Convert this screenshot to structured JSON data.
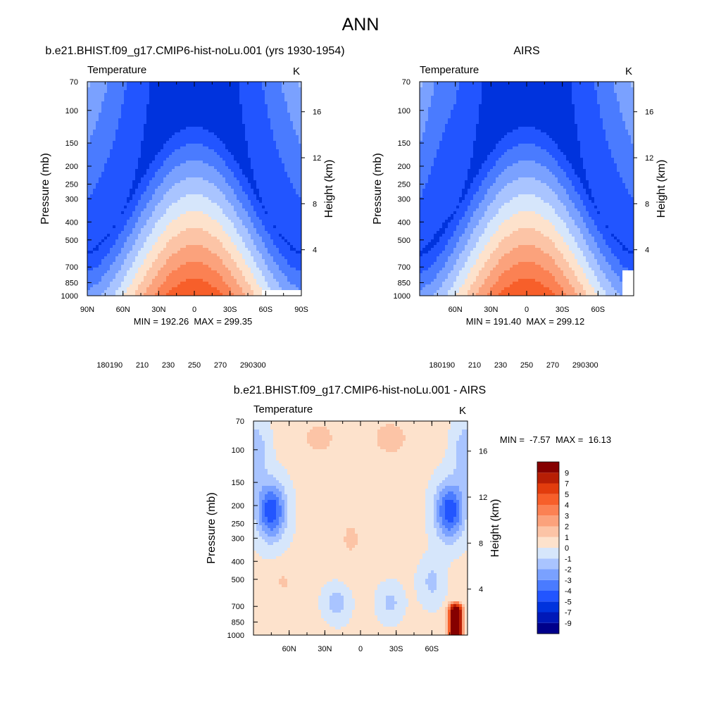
{
  "figure": {
    "main_title": "ANN"
  },
  "chart_data": [
    {
      "type": "heatmap",
      "title": "b.e21.BHIST.f09_g17.CMIP6-hist-noLu.001 (yrs 1930-1954)",
      "left_string": "Temperature",
      "right_string": "K",
      "xlabel": "",
      "ylabel": "Pressure (mb)",
      "ylabel_right": "Height (km)",
      "x_ticks": [
        "90N",
        "60N",
        "30N",
        "0",
        "30S",
        "60S",
        "90S"
      ],
      "x_tick_values": [
        90,
        60,
        30,
        0,
        -30,
        -60,
        -90
      ],
      "xlim": [
        90,
        -90
      ],
      "y_ticks": [
        "70",
        "100",
        "150",
        "200",
        "250",
        "300",
        "400",
        "500",
        "700",
        "850",
        "1000"
      ],
      "y_tick_values": [
        70,
        100,
        150,
        200,
        250,
        300,
        400,
        500,
        700,
        850,
        1000
      ],
      "ylim": [
        1000,
        70
      ],
      "y_right_ticks": [
        "16",
        "12",
        "8",
        "4"
      ],
      "y_right_tick_values": [
        16,
        12,
        8,
        4
      ],
      "y_scale": "log",
      "stats_text": "MIN = 192.26  MAX = 299.35",
      "min": 192.26,
      "max": 299.35,
      "model": "model",
      "colorbar": {
        "orientation": "horizontal",
        "levels": [
          180,
          190,
          200,
          210,
          220,
          230,
          240,
          250,
          260,
          270,
          280,
          290,
          300
        ],
        "labels": [
          "180",
          "190",
          "210",
          "230",
          "250",
          "270",
          "290",
          "300"
        ],
        "colors": [
          "#00008b",
          "#0019b8",
          "#0033dd",
          "#2255ff",
          "#4a7bff",
          "#7aa1ff",
          "#a9c4ff",
          "#d6e6fb",
          "#fde2cc",
          "#fcc4a6",
          "#fba27c",
          "#fb8153",
          "#f75f2a",
          "#e23c0d",
          "#b71e05",
          "#850000"
        ]
      }
    },
    {
      "type": "heatmap",
      "title": "AIRS",
      "left_string": "Temperature",
      "right_string": "K",
      "xlabel": "",
      "ylabel": "Pressure (mb)",
      "ylabel_right": "Height (km)",
      "x_ticks": [
        "60N",
        "30N",
        "0",
        "30S",
        "60S"
      ],
      "x_tick_values": [
        60,
        30,
        0,
        -30,
        -60
      ],
      "xlim": [
        90,
        -90
      ],
      "y_ticks": [
        "70",
        "100",
        "150",
        "200",
        "250",
        "300",
        "400",
        "500",
        "700",
        "850",
        "1000"
      ],
      "y_tick_values": [
        70,
        100,
        150,
        200,
        250,
        300,
        400,
        500,
        700,
        850,
        1000
      ],
      "ylim": [
        1000,
        70
      ],
      "y_right_ticks": [
        "16",
        "12",
        "8",
        "4"
      ],
      "y_right_tick_values": [
        16,
        12,
        8,
        4
      ],
      "y_scale": "log",
      "stats_text": "MIN = 191.40  MAX = 299.12",
      "min": 191.4,
      "max": 299.12,
      "model": "obs",
      "colorbar": {
        "orientation": "horizontal",
        "levels": [
          180,
          190,
          200,
          210,
          220,
          230,
          240,
          250,
          260,
          270,
          280,
          290,
          300
        ],
        "labels": [
          "180",
          "190",
          "210",
          "230",
          "250",
          "270",
          "290",
          "300"
        ],
        "colors": [
          "#00008b",
          "#0019b8",
          "#0033dd",
          "#2255ff",
          "#4a7bff",
          "#7aa1ff",
          "#a9c4ff",
          "#d6e6fb",
          "#fde2cc",
          "#fcc4a6",
          "#fba27c",
          "#fb8153",
          "#f75f2a",
          "#e23c0d",
          "#b71e05",
          "#850000"
        ]
      }
    },
    {
      "type": "heatmap",
      "title": "b.e21.BHIST.f09_g17.CMIP6-hist-noLu.001 - AIRS",
      "left_string": "Temperature",
      "right_string": "K",
      "xlabel": "",
      "ylabel": "Pressure (mb)",
      "ylabel_right": "Height (km)",
      "x_ticks": [
        "60N",
        "30N",
        "0",
        "30S",
        "60S"
      ],
      "x_tick_values": [
        60,
        30,
        0,
        -30,
        -60
      ],
      "xlim": [
        90,
        -90
      ],
      "y_ticks": [
        "70",
        "100",
        "150",
        "200",
        "250",
        "300",
        "400",
        "500",
        "700",
        "850",
        "1000"
      ],
      "y_tick_values": [
        70,
        100,
        150,
        200,
        250,
        300,
        400,
        500,
        700,
        850,
        1000
      ],
      "ylim": [
        1000,
        70
      ],
      "y_right_ticks": [
        "16",
        "12",
        "8",
        "4"
      ],
      "y_right_tick_values": [
        16,
        12,
        8,
        4
      ],
      "y_scale": "log",
      "stats_text": "MIN =  -7.57  MAX =  16.13",
      "min": -7.57,
      "max": 16.13,
      "model": "diff",
      "colorbar": {
        "orientation": "vertical",
        "levels": [
          -9,
          -7,
          -5,
          -4,
          -3,
          -2,
          -1,
          0,
          1,
          2,
          3,
          4,
          5,
          7,
          9
        ],
        "labels": [
          "-9",
          "-7",
          "-5",
          "-4",
          "-3",
          "-2",
          "-1",
          "0",
          "1",
          "2",
          "3",
          "4",
          "5",
          "7",
          "9"
        ],
        "colors": [
          "#00008b",
          "#0019b8",
          "#0033dd",
          "#2255ff",
          "#4a7bff",
          "#7aa1ff",
          "#a9c4ff",
          "#d6e6fb",
          "#fde2cc",
          "#fcc4a6",
          "#fba27c",
          "#fb8153",
          "#f75f2a",
          "#e23c0d",
          "#b71e05",
          "#850000"
        ]
      }
    }
  ]
}
